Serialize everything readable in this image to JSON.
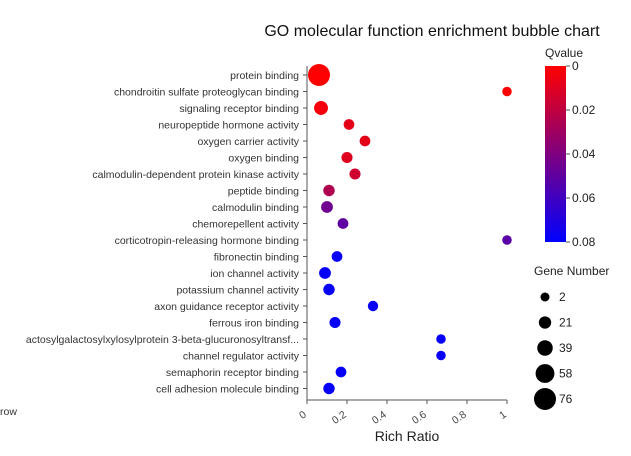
{
  "chart_data": {
    "type": "scatter",
    "title": "GO molecular function enrichment bubble chart",
    "xlabel": "Rich Ratio",
    "ylabel": "",
    "xlim": [
      0,
      1
    ],
    "x_ticks": [
      "0",
      "0.2",
      "0.4",
      "0.6",
      "0.8",
      "1"
    ],
    "stray_label": "row",
    "categories": [
      "protein binding",
      "chondroitin sulfate proteoglycan binding",
      "signaling receptor binding",
      "neuropeptide hormone activity",
      "oxygen carrier activity",
      "oxygen binding",
      "calmodulin-dependent protein kinase activity",
      "peptide binding",
      "calmodulin binding",
      "chemorepellent activity",
      "corticotropin-releasing hormone binding",
      "fibronectin binding",
      "ion channel activity",
      "potassium channel activity",
      "axon guidance receptor activity",
      "ferrous iron binding",
      "actosylgalactosylxylosylprotein 3-beta-glucuronosyltransf...",
      "channel regulator activity",
      "semaphorin receptor binding",
      "cell adhesion molecule binding"
    ],
    "points": [
      {
        "x": 0.06,
        "gene_number": 76,
        "qvalue": 0.0
      },
      {
        "x": 1.0,
        "gene_number": 5,
        "qvalue": 0.001
      },
      {
        "x": 0.07,
        "gene_number": 30,
        "qvalue": 0.003
      },
      {
        "x": 0.21,
        "gene_number": 12,
        "qvalue": 0.008
      },
      {
        "x": 0.29,
        "gene_number": 12,
        "qvalue": 0.008
      },
      {
        "x": 0.2,
        "gene_number": 14,
        "qvalue": 0.01
      },
      {
        "x": 0.24,
        "gene_number": 14,
        "qvalue": 0.015
      },
      {
        "x": 0.11,
        "gene_number": 16,
        "qvalue": 0.025
      },
      {
        "x": 0.1,
        "gene_number": 18,
        "qvalue": 0.045
      },
      {
        "x": 0.18,
        "gene_number": 12,
        "qvalue": 0.05
      },
      {
        "x": 1.0,
        "gene_number": 5,
        "qvalue": 0.052
      },
      {
        "x": 0.15,
        "gene_number": 12,
        "qvalue": 0.078
      },
      {
        "x": 0.09,
        "gene_number": 18,
        "qvalue": 0.078
      },
      {
        "x": 0.11,
        "gene_number": 16,
        "qvalue": 0.078
      },
      {
        "x": 0.33,
        "gene_number": 10,
        "qvalue": 0.078
      },
      {
        "x": 0.14,
        "gene_number": 14,
        "qvalue": 0.078
      },
      {
        "x": 0.67,
        "gene_number": 5,
        "qvalue": 0.078
      },
      {
        "x": 0.67,
        "gene_number": 5,
        "qvalue": 0.078
      },
      {
        "x": 0.17,
        "gene_number": 12,
        "qvalue": 0.078
      },
      {
        "x": 0.11,
        "gene_number": 16,
        "qvalue": 0.078
      }
    ],
    "color_legend": {
      "title": "Qvalue",
      "min": 0,
      "max": 0.08,
      "ticks": [
        "0",
        "0.02",
        "0.04",
        "0.06",
        "0.08"
      ],
      "color_low": "#ff0000",
      "color_mid": "#7f0080",
      "color_high": "#0000ff"
    },
    "size_legend": {
      "title": "Gene Number",
      "values": [
        2,
        21,
        39,
        58,
        76
      ],
      "labels": [
        "2",
        "21",
        "39",
        "58",
        "76"
      ]
    },
    "grid": false
  }
}
